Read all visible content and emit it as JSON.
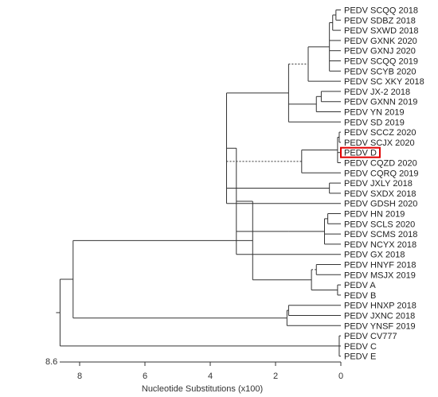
{
  "leaves": [
    "PEDV SCQQ 2018",
    "PEDV SDBZ 2018",
    "PEDV SXWD 2018",
    "PEDV GXNK 2020",
    "PEDV GXNJ 2020",
    "PEDV SCQQ 2019",
    "PEDV SCYB 2020",
    "PEDV SC XKY 2018",
    "PEDV JX-2 2018",
    "PEDV GXNN 2019",
    "PEDV YN 2019",
    "PEDV SD 2019",
    "PEDV SCCZ 2020",
    "PEDV SCJX 2020",
    "PEDV D",
    "PEDV CQZD 2020",
    "PEDV CQRQ 2019",
    "PEDV JXLY 2018",
    "PEDV SXDX 2018",
    "PEDV GDSH 2020",
    "PEDV HN 2019",
    "PEDV SCLS 2020",
    "PEDV SCMS 2018",
    "PEDV NCYX 2018",
    "PEDV GX 2018",
    "PEDV HNYF 2018",
    "PEDV MSJX 2019",
    "PEDV A",
    "PEDV B",
    "PEDV HNXP 2018",
    "PEDV JXNC 2018",
    "PEDV YNSF 2019",
    "PEDV CV777",
    "PEDV C",
    "PEDV E"
  ],
  "highlighted_leaf": "PEDV D",
  "highlight_color": "#e00000",
  "axis": {
    "ticks": [
      "8",
      "6",
      "4",
      "2",
      "0"
    ],
    "tick_values": [
      8,
      6,
      4,
      2,
      0
    ],
    "max_label": "8.6",
    "max_value": 8.6,
    "label": "Nucleotide Substitutions (x100)"
  }
}
